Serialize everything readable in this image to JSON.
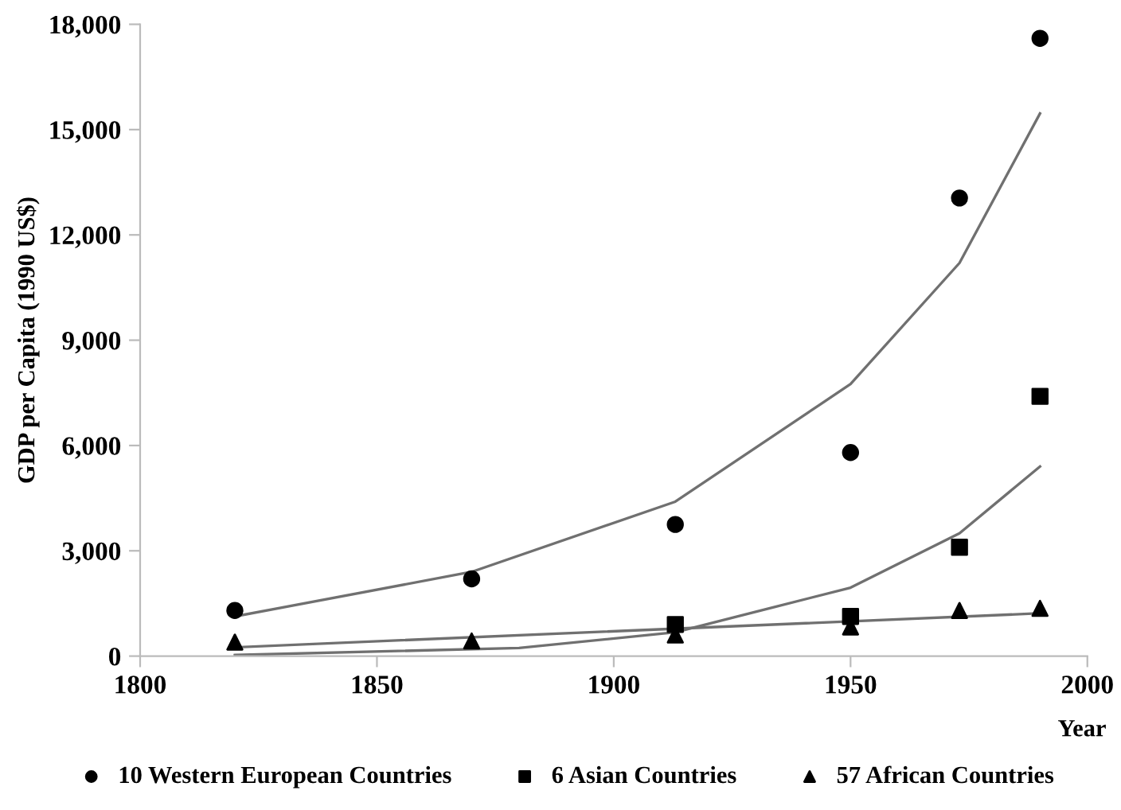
{
  "chart_data": {
    "type": "scatter",
    "xlabel": "Year",
    "ylabel": "GDP per Capita (1990 US$)",
    "xlim": [
      1800,
      2000
    ],
    "xticks": [
      1800,
      1850,
      1900,
      1950,
      2000
    ],
    "ylim": [
      0,
      18000
    ],
    "yticks": [
      {
        "value": 0,
        "label": "0"
      },
      {
        "value": 3000,
        "label": "3,000"
      },
      {
        "value": 6000,
        "label": "6,000"
      },
      {
        "value": 9000,
        "label": "9,000"
      },
      {
        "value": 12000,
        "label": "12,000"
      },
      {
        "value": 15000,
        "label": "15,000"
      },
      {
        "value": 18000,
        "label": "18,000"
      }
    ],
    "grid": false,
    "legend": "bottom",
    "series": [
      {
        "name": "10 Western European Countries",
        "marker": "circle",
        "color": "#000000",
        "x": [
          1820,
          1870,
          1913,
          1950,
          1973,
          1990
        ],
        "values": [
          1300,
          2200,
          3750,
          5800,
          13050,
          17600
        ]
      },
      {
        "name": "6 Asian Countries",
        "marker": "square",
        "color": "#000000",
        "x": [
          1913,
          1950,
          1973,
          1990
        ],
        "values": [
          900,
          1130,
          3100,
          7400
        ]
      },
      {
        "name": "57 African Countries",
        "marker": "triangle",
        "color": "#000000",
        "x": [
          1820,
          1870,
          1913,
          1950,
          1973,
          1990
        ],
        "values": [
          400,
          430,
          600,
          830,
          1300,
          1360
        ]
      },
      {
        "type": "line",
        "marker": "none",
        "color": "#707070",
        "x": [
          1820,
          1870,
          1913,
          1950,
          1973,
          1990
        ],
        "values": [
          1130,
          2400,
          4400,
          7750,
          11200,
          15460
        ]
      },
      {
        "type": "line",
        "marker": "none",
        "color": "#707070",
        "x": [
          1820,
          1880,
          1913,
          1950,
          1973,
          1990
        ],
        "values": [
          30,
          230,
          680,
          1950,
          3500,
          5400
        ]
      },
      {
        "type": "line",
        "marker": "none",
        "color": "#707070",
        "x": [
          1820,
          1990
        ],
        "values": [
          250,
          1220
        ]
      }
    ]
  }
}
